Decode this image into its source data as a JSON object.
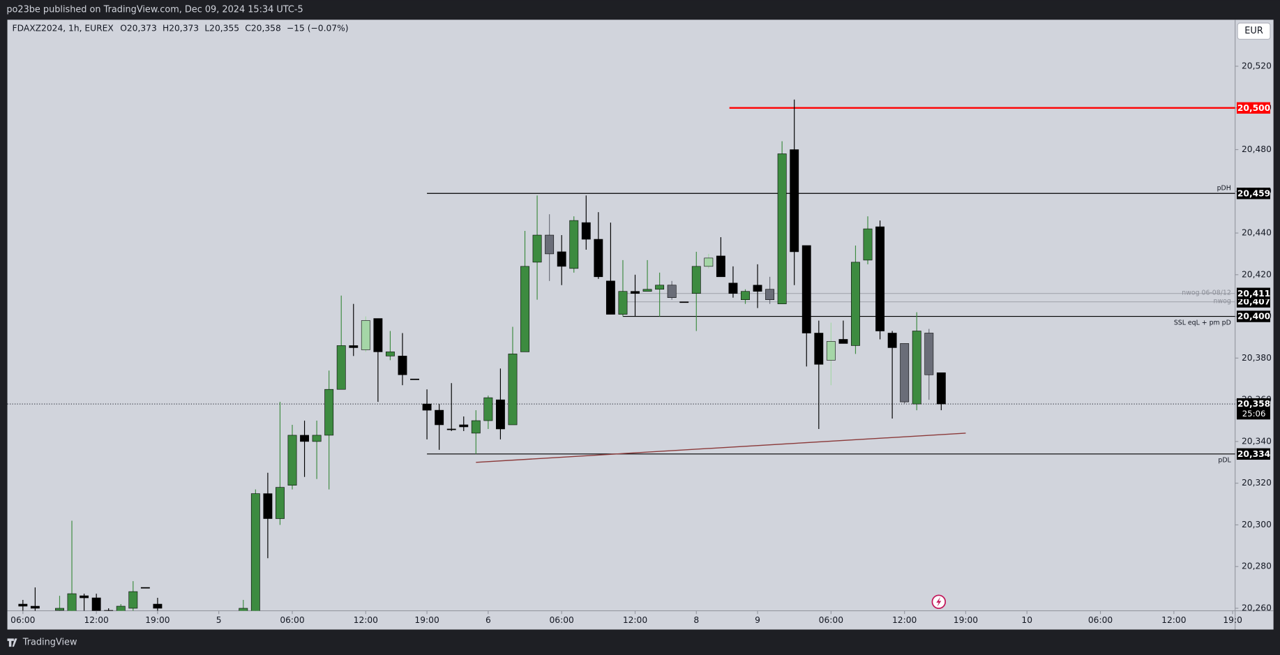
{
  "header": "po23be published on TradingView.com, Dec 09, 2024 15:34 UTC-5",
  "footer": "TradingView",
  "currency": "EUR",
  "legend": {
    "symbol": "FDAXZ2024, 1h, EUREX",
    "items": [
      {
        "key": "O",
        "value": "20,373"
      },
      {
        "key": "H",
        "value": "20,373"
      },
      {
        "key": "L",
        "value": "20,355"
      },
      {
        "key": "C",
        "value": "20,358"
      }
    ],
    "change": "−15 (−0.07%)"
  },
  "chart_data": {
    "type": "candlestick",
    "x": [
      0,
      1,
      3,
      4,
      5,
      6,
      7,
      8,
      9,
      10,
      11,
      18,
      19,
      20,
      21,
      22,
      23,
      24,
      25,
      26,
      27,
      28,
      29,
      30,
      31,
      32,
      33,
      34,
      35,
      36,
      37,
      38,
      39,
      40,
      41,
      42,
      43,
      44,
      45,
      46,
      47,
      48,
      49,
      50,
      51,
      52,
      53,
      54,
      55,
      56,
      57,
      58,
      59,
      60,
      61,
      62,
      63,
      64,
      65,
      66,
      67,
      68,
      69,
      70,
      71,
      72,
      73,
      74,
      75
    ],
    "open": [
      20262,
      20261,
      20259,
      20255,
      20266,
      20265,
      20259,
      20255,
      20260,
      20270,
      20262,
      20258,
      20255,
      20315,
      20303,
      20319,
      20343,
      20340,
      20343,
      20365,
      20386,
      20384,
      20399,
      20381,
      20381,
      20370,
      20358,
      20355,
      20346,
      20348,
      20344,
      20350,
      20360,
      20348,
      20383,
      20426,
      20439,
      20431,
      20423,
      20445,
      20437,
      20417,
      20401,
      20412,
      20412,
      20413,
      20415,
      20407,
      20411,
      20424,
      20429,
      20416,
      20408,
      20415,
      20413,
      20406,
      20480,
      20434,
      20392,
      20379,
      20389,
      20386,
      20427,
      20443,
      20392,
      20387,
      20358,
      20392,
      20373
    ],
    "high": [
      20264,
      20270,
      20266,
      20302,
      20267,
      20267,
      20260,
      20262,
      20273,
      20270,
      20265,
      20264,
      20317,
      20325,
      20359,
      20348,
      20350,
      20350,
      20374,
      20410,
      20406,
      20400,
      20399,
      20393,
      20392,
      20370,
      20365,
      20358,
      20368,
      20352,
      20355,
      20362,
      20375,
      20395,
      20441,
      20458,
      20449,
      20439,
      20448,
      20458,
      20450,
      20445,
      20427,
      20420,
      20427,
      20421,
      20417,
      20407,
      20431,
      20430,
      20438,
      20424,
      20413,
      20425,
      20419,
      20484,
      20504,
      20434,
      20398,
      20397,
      20398,
      20434,
      20448,
      20446,
      20393,
      20387,
      20402,
      20394,
      20373
    ],
    "low": [
      20257,
      20256,
      20256,
      20252,
      20258,
      20250,
      20254,
      20252,
      20258,
      20270,
      20255,
      20255,
      20250,
      20284,
      20300,
      20317,
      20323,
      20322,
      20317,
      20365,
      20381,
      20383,
      20359,
      20379,
      20367,
      20370,
      20341,
      20336,
      20345,
      20345,
      20334,
      20346,
      20341,
      20348,
      20383,
      20408,
      20417,
      20415,
      20421,
      20432,
      20418,
      20401,
      20400,
      20400,
      20412,
      20400,
      20408,
      20407,
      20393,
      20423,
      20419,
      20409,
      20406,
      20404,
      20406,
      20406,
      20415,
      20376,
      20346,
      20367,
      20387,
      20382,
      20425,
      20389,
      20351,
      20358,
      20355,
      20360,
      20355
    ],
    "close": [
      20261,
      20260,
      20260,
      20267,
      20265,
      20255,
      20258,
      20261,
      20268,
      20270,
      20260,
      20260,
      20315,
      20303,
      20318,
      20343,
      20340,
      20343,
      20365,
      20386,
      20385,
      20398,
      20383,
      20383,
      20372,
      20370,
      20355,
      20348,
      20346,
      20347,
      20350,
      20361,
      20346,
      20382,
      20424,
      20439,
      20430,
      20424,
      20446,
      20437,
      20419,
      20401,
      20412,
      20411,
      20413,
      20415,
      20409,
      20407,
      20424,
      20428,
      20419,
      20411,
      20412,
      20412,
      20408,
      20478,
      20431,
      20392,
      20377,
      20388,
      20387,
      20426,
      20442,
      20393,
      20385,
      20359,
      20393,
      20372,
      20358
    ],
    "colors": [
      "#000000",
      "#000000",
      "#3d8b40",
      "#3d8b40",
      "#000000",
      "#000000",
      "#000000",
      "#3d8b40",
      "#3d8b40",
      "#000000",
      "#000000",
      "#3d8b40",
      "#3d8b40",
      "#000000",
      "#3d8b40",
      "#3d8b40",
      "#000000",
      "#3d8b40",
      "#3d8b40",
      "#3d8b40",
      "#000000",
      "#a5d6a7",
      "#000000",
      "#3d8b40",
      "#000000",
      "#000000",
      "#000000",
      "#000000",
      "#000000",
      "#000000",
      "#3d8b40",
      "#3d8b40",
      "#000000",
      "#3d8b40",
      "#3d8b40",
      "#3d8b40",
      "#6a6d78",
      "#000000",
      "#3d8b40",
      "#000000",
      "#000000",
      "#000000",
      "#3d8b40",
      "#000000",
      "#3d8b40",
      "#3d8b40",
      "#6a6d78",
      "#000000",
      "#3d8b40",
      "#a5d6a7",
      "#000000",
      "#000000",
      "#3d8b40",
      "#000000",
      "#6a6d78",
      "#3d8b40",
      "#000000",
      "#000000",
      "#000000",
      "#a5d6a7",
      "#000000",
      "#3d8b40",
      "#3d8b40",
      "#000000",
      "#000000",
      "#6a6d78",
      "#3d8b40",
      "#6a6d78",
      "#000000"
    ],
    "xlim": [
      -1.27,
      99
    ],
    "ylim": [
      20258.8,
      20542.3
    ],
    "yticks": [
      {
        "value": 20260,
        "label": "20,260"
      },
      {
        "value": 20280,
        "label": "20,280"
      },
      {
        "value": 20300,
        "label": "20,300"
      },
      {
        "value": 20320,
        "label": "20,320"
      },
      {
        "value": 20340,
        "label": "20,340"
      },
      {
        "value": 20360,
        "label": "20,360"
      },
      {
        "value": 20380,
        "label": "20,380"
      },
      {
        "value": 20400,
        "label": "20,400"
      },
      {
        "value": 20420,
        "label": "20,420"
      },
      {
        "value": 20440,
        "label": "20,440"
      },
      {
        "value": 20460,
        "label": "20,460"
      },
      {
        "value": 20480,
        "label": "20,480"
      },
      {
        "value": 20500,
        "label": "20,500"
      },
      {
        "value": 20520,
        "label": "20,520"
      }
    ],
    "xticks": [
      {
        "value": 0,
        "label": "06:00"
      },
      {
        "value": 6,
        "label": "12:00"
      },
      {
        "value": 11,
        "label": "19:00"
      },
      {
        "value": 16,
        "label": "5"
      },
      {
        "value": 22,
        "label": "06:00"
      },
      {
        "value": 28,
        "label": "12:00"
      },
      {
        "value": 33,
        "label": "19:00"
      },
      {
        "value": 38,
        "label": "6"
      },
      {
        "value": 44,
        "label": "06:00"
      },
      {
        "value": 50,
        "label": "12:00"
      },
      {
        "value": 55,
        "label": "8"
      },
      {
        "value": 60,
        "label": "9"
      },
      {
        "value": 66,
        "label": "06:00"
      },
      {
        "value": 72,
        "label": "12:00"
      },
      {
        "value": 77,
        "label": "19:00"
      },
      {
        "value": 82,
        "label": "10"
      },
      {
        "value": 88,
        "label": "06:00"
      },
      {
        "value": 94,
        "label": "12:00"
      },
      {
        "value": 98.8,
        "label": "19:0"
      }
    ],
    "levels": [
      {
        "value": 20500,
        "label": "20,500",
        "x_start": 57.7,
        "color": "#ff0000",
        "width": 2,
        "box": "#ff0000"
      },
      {
        "value": 20459,
        "label": "20,459",
        "x_start": 33,
        "color": "#000000",
        "width": 1,
        "box": "#000000",
        "tag": "pDH",
        "tag_side": "above"
      },
      {
        "value": 20407,
        "label": "20,407",
        "x_start": 49,
        "color": "#a3a6af",
        "width": 1,
        "box": "#000000",
        "tag": "nwog",
        "tag_side": "on"
      },
      {
        "value": 20411,
        "label": "20,411",
        "x_start": 49,
        "color": "#a3a6af",
        "width": 1,
        "box": "#000000",
        "tag": "nwog 06-08/12",
        "tag_side": "on"
      },
      {
        "value": 20400,
        "label": "20,400",
        "x_start": 49,
        "color": "#000000",
        "width": 1,
        "box": "#000000",
        "tag": "SSL eqL + pm pD",
        "tag_side": "below"
      },
      {
        "value": 20334,
        "label": "20,334",
        "x_start": 33,
        "color": "#000000",
        "width": 1,
        "box": "#000000",
        "tag": "pDL",
        "tag_side": "below"
      }
    ],
    "trendline": {
      "x": [
        37,
        77
      ],
      "values": [
        20330,
        20344
      ],
      "color": "#8b3a3a"
    },
    "current": {
      "value": 20358,
      "label": "20,358",
      "countdown": "25:06"
    }
  }
}
